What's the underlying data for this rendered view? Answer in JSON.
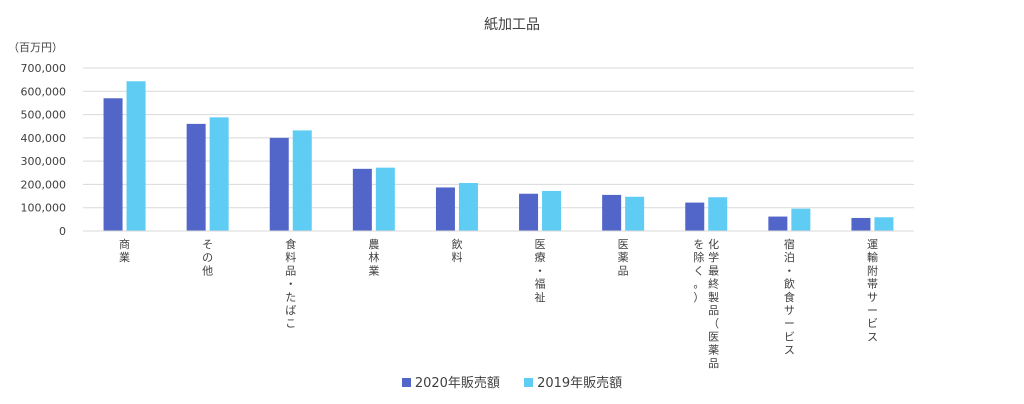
{
  "chart_data": {
    "type": "bar",
    "title": "紙加工品",
    "unit_label": "（百万円）",
    "ylim": [
      0,
      700000
    ],
    "yticks": [
      0,
      100000,
      200000,
      300000,
      400000,
      500000,
      600000,
      700000
    ],
    "ytick_labels": [
      "0",
      "100,000",
      "200,000",
      "300,000",
      "400,000",
      "500,000",
      "600,000",
      "700,000"
    ],
    "grid": true,
    "legend_position": "bottom",
    "categories": [
      "商業",
      "その他",
      "食料品・たばこ",
      "農林業",
      "飲料",
      "医療・福祉",
      "医薬品",
      "化学最終製品（医薬品を除く。）",
      "宿泊・飲食サービス",
      "運輸附帯サービス"
    ],
    "series": [
      {
        "name": "2020年販売額",
        "color": "#5166C8",
        "values": [
          570000,
          460000,
          400000,
          267000,
          187000,
          160000,
          155000,
          122000,
          62000,
          56000
        ]
      },
      {
        "name": "2019年販売額",
        "color": "#5ECCF3",
        "values": [
          643000,
          488000,
          432000,
          272000,
          206000,
          172000,
          147000,
          145000,
          96000,
          59000
        ]
      }
    ]
  }
}
